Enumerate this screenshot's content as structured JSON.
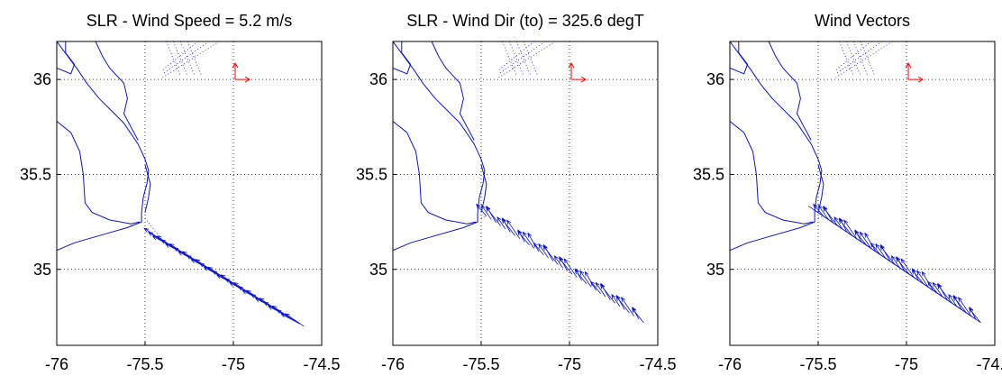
{
  "figure": {
    "colors": {
      "coast": "#0a14c8",
      "vectors": "#0a14c8",
      "reference": "#ff0000",
      "grid": "#000000"
    }
  },
  "chart_data": [
    {
      "type": "scatter",
      "title": "SLR - Wind Speed = 5.2 m/s",
      "xlim": [
        -76,
        -74.5
      ],
      "ylim": [
        34.6,
        36.2
      ],
      "xticks": [
        "-76",
        "-75.5",
        "-75",
        "-74.5"
      ],
      "yticks": [
        "35",
        "35.5",
        "36"
      ],
      "grid": true,
      "vector_style": "along-track",
      "track": {
        "lon": [
          -75.4,
          -74.6
        ],
        "lat": [
          35.15,
          34.7
        ]
      }
    },
    {
      "type": "scatter",
      "title": "SLR - Wind Dir (to) = 325.6 degT",
      "xlim": [
        -76,
        -74.5
      ],
      "ylim": [
        34.6,
        36.2
      ],
      "xticks": [
        "-76",
        "-75.5",
        "-75",
        "-74.5"
      ],
      "yticks": [
        "35",
        "35.5",
        "36"
      ],
      "grid": true,
      "vector_style": "direction",
      "direction_deg": 325.6,
      "track": {
        "lon": [
          -75.47,
          -74.58
        ],
        "lat": [
          35.28,
          34.72
        ]
      }
    },
    {
      "type": "scatter",
      "title": "Wind Vectors",
      "xlim": [
        -76,
        -74.5
      ],
      "ylim": [
        34.6,
        36.2
      ],
      "xticks": [
        "-76",
        "-75.5",
        "-75",
        "-74.5"
      ],
      "yticks": [
        "35",
        "35.5",
        "36"
      ],
      "grid": true,
      "vector_style": "combined",
      "direction_deg": 325.6,
      "track": {
        "lon": [
          -75.47,
          -74.58
        ],
        "lat": [
          35.28,
          34.72
        ]
      }
    }
  ]
}
